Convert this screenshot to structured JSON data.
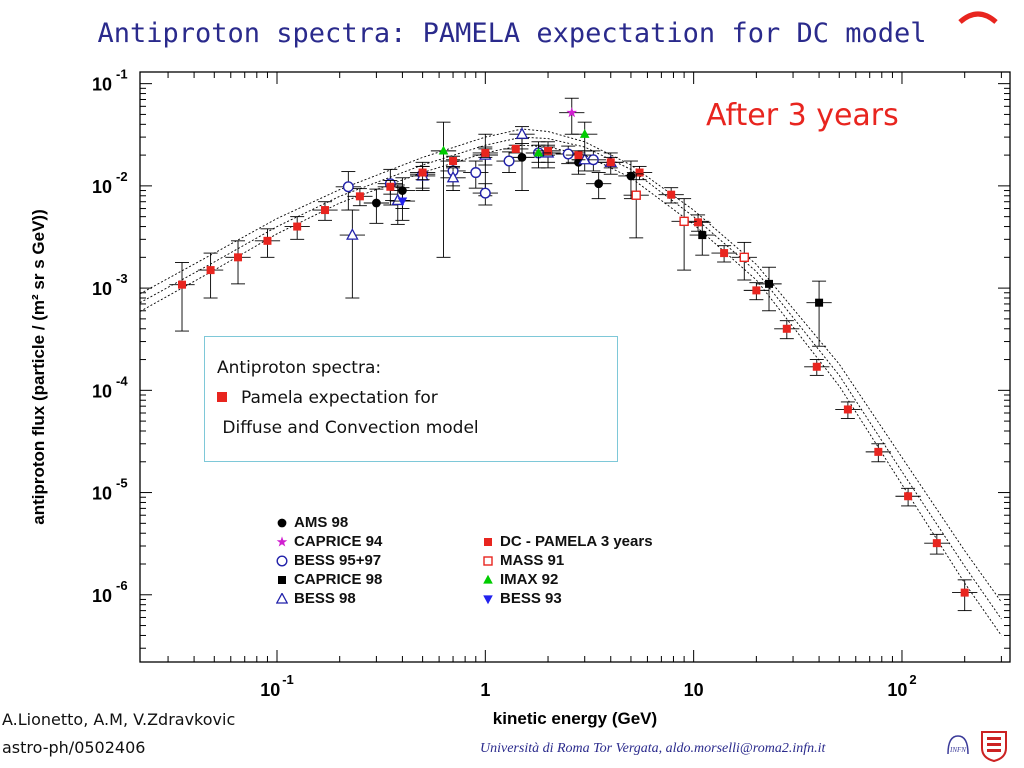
{
  "slide": {
    "title": "Antiproton spectra: PAMELA expectation for DC model",
    "overlay_label": "After 3 years",
    "credit_line1": "A.Lionetto, A.M, V.Zdravkovic",
    "credit_line2": "astro-ph/0502406",
    "affiliation": "Università di Roma Tor Vergata,    aldo.morselli@roma2.infn.it"
  },
  "info_box": {
    "line1": "Antiproton spectra:",
    "line2": "Pamela expectation for",
    "line3": "Diffuse and Convection  model"
  },
  "logos": {
    "infn": "INFN",
    "shield": "shield-icon"
  },
  "colors": {
    "accent_red": "#e8251f",
    "title_blue": "#2a2a8c",
    "box_border": "#7ec8d8"
  },
  "chart_data": {
    "type": "scatter",
    "xscale": "log",
    "yscale": "log",
    "xlabel": "kinetic energy (GeV)",
    "ylabel": "antiproton flux (particle / (m² sr s GeV))",
    "xlim": [
      0.022,
      330
    ],
    "ylim": [
      2.2e-07,
      0.13
    ],
    "x_ticks": [
      {
        "v": 0.1,
        "base": "10",
        "exp": "-1"
      },
      {
        "v": 1,
        "base": "1",
        "exp": ""
      },
      {
        "v": 10,
        "base": "10",
        "exp": ""
      },
      {
        "v": 100,
        "base": "10",
        "exp": "2"
      }
    ],
    "y_ticks": [
      {
        "v": 0.1,
        "base": "10",
        "exp": "-1"
      },
      {
        "v": 0.01,
        "base": "10",
        "exp": "-2"
      },
      {
        "v": 0.001,
        "base": "10",
        "exp": "-3"
      },
      {
        "v": 0.0001,
        "base": "10",
        "exp": "-4"
      },
      {
        "v": 1e-05,
        "base": "10",
        "exp": "-5"
      },
      {
        "v": 1e-06,
        "base": "10",
        "exp": "-6"
      }
    ],
    "series": [
      {
        "name": "AMS 98",
        "marker": "filled-circle",
        "color": "#000000",
        "points": [
          [
            0.3,
            0.0068,
            0.0025
          ],
          [
            0.4,
            0.009,
            0.003
          ],
          [
            1.0,
            0.02,
            0.012
          ],
          [
            1.5,
            0.019,
            0.01
          ],
          [
            2.0,
            0.021,
            0.006
          ],
          [
            2.8,
            0.017,
            0.004
          ],
          [
            3.5,
            0.0105,
            0.003
          ],
          [
            5.0,
            0.0125,
            0.005
          ]
        ]
      },
      {
        "name": "CAPRICE 94",
        "marker": "star",
        "color": "#d020d0",
        "points": [
          [
            2.6,
            0.052,
            0.02
          ]
        ]
      },
      {
        "name": "BESS 95+97",
        "marker": "open-circle",
        "color": "#2222aa",
        "points": [
          [
            0.22,
            0.0098,
            0.004
          ],
          [
            0.35,
            0.0105,
            0.004
          ],
          [
            0.5,
            0.013,
            0.004
          ],
          [
            0.7,
            0.014,
            0.004
          ],
          [
            0.9,
            0.0135,
            0.004
          ],
          [
            1.0,
            0.0085,
            0.002
          ],
          [
            1.3,
            0.0175,
            0.004
          ],
          [
            1.8,
            0.021,
            0.004
          ],
          [
            2.5,
            0.0205,
            0.004
          ],
          [
            3.3,
            0.018,
            0.004
          ]
        ]
      },
      {
        "name": "CAPRICE 98",
        "marker": "filled-square",
        "color": "#000000",
        "points": [
          [
            11,
            0.0033,
            0.0012
          ],
          [
            23,
            0.0011,
            0.0005
          ],
          [
            40,
            0.00072,
            0.00045
          ]
        ]
      },
      {
        "name": "BESS 98",
        "marker": "open-triangle-up",
        "color": "#2222aa",
        "points": [
          [
            0.23,
            0.0033,
            0.0025
          ],
          [
            0.38,
            0.0072,
            0.003
          ],
          [
            0.5,
            0.0125,
            0.003
          ],
          [
            0.7,
            0.012,
            0.003
          ],
          [
            1.0,
            0.02,
            0.004
          ],
          [
            1.5,
            0.032,
            0.006
          ],
          [
            2.0,
            0.021,
            0.004
          ],
          [
            3.0,
            0.018,
            0.004
          ],
          [
            4.0,
            0.017,
            0.004
          ]
        ]
      },
      {
        "name": "DC - PAMELA 3 years",
        "marker": "filled-square",
        "color": "#e8251f",
        "points": [
          [
            0.035,
            0.00108,
            0.0007
          ],
          [
            0.048,
            0.0015,
            0.0007
          ],
          [
            0.065,
            0.002,
            0.0009
          ],
          [
            0.09,
            0.0029,
            0.0009
          ],
          [
            0.125,
            0.004,
            0.001
          ],
          [
            0.17,
            0.0058,
            0.0012
          ],
          [
            0.25,
            0.0079,
            0.0015
          ],
          [
            0.35,
            0.0098,
            0.0015
          ],
          [
            0.5,
            0.0135,
            0.002
          ],
          [
            0.7,
            0.0175,
            0.002
          ],
          [
            1.0,
            0.021,
            0.002
          ],
          [
            1.4,
            0.023,
            0.002
          ],
          [
            2.0,
            0.022,
            0.002
          ],
          [
            2.8,
            0.02,
            0.002
          ],
          [
            4.0,
            0.017,
            0.002
          ],
          [
            5.5,
            0.0135,
            0.002
          ],
          [
            7.8,
            0.0082,
            0.0014
          ],
          [
            10.5,
            0.0044,
            0.0008
          ],
          [
            14,
            0.0022,
            0.0004
          ],
          [
            20,
            0.00095,
            0.00018
          ],
          [
            28,
            0.0004,
            8e-05
          ],
          [
            39,
            0.00017,
            3e-05
          ],
          [
            55,
            6.5e-05,
            1.2e-05
          ],
          [
            77,
            2.5e-05,
            5e-06
          ],
          [
            107,
            9.2e-06,
            1.8e-06
          ],
          [
            147,
            3.2e-06,
            7e-07
          ],
          [
            200,
            1.05e-06,
            3.5e-07
          ]
        ]
      },
      {
        "name": "MASS 91",
        "marker": "open-square",
        "color": "#e8251f",
        "points": [
          [
            5.3,
            0.0081,
            0.005
          ],
          [
            9.0,
            0.0045,
            0.003
          ],
          [
            17.5,
            0.002,
            0.0008
          ]
        ]
      },
      {
        "name": "IMAX 92",
        "marker": "filled-triangle-up",
        "color": "#00cc00",
        "points": [
          [
            0.63,
            0.022,
            0.02
          ],
          [
            1.8,
            0.021,
            0.006
          ],
          [
            3.0,
            0.032,
            0.01
          ]
        ]
      },
      {
        "name": "BESS 93",
        "marker": "filled-triangle-down",
        "color": "#2222ee",
        "points": [
          [
            0.4,
            0.0071,
            0.0025
          ]
        ]
      }
    ],
    "model_bands": [
      {
        "points": [
          [
            0.022,
            0.00088
          ],
          [
            0.05,
            0.0022
          ],
          [
            0.1,
            0.0048
          ],
          [
            0.2,
            0.0092
          ],
          [
            0.5,
            0.019
          ],
          [
            1.0,
            0.03
          ],
          [
            1.5,
            0.036
          ],
          [
            2.0,
            0.034
          ],
          [
            3.0,
            0.027
          ],
          [
            5.0,
            0.016
          ],
          [
            10,
            0.0058
          ],
          [
            20,
            0.0017
          ],
          [
            50,
            0.00018
          ],
          [
            100,
            2.2e-05
          ],
          [
            200,
            2.7e-06
          ],
          [
            300,
            8.5e-07
          ]
        ]
      },
      {
        "points": [
          [
            0.022,
            0.00072
          ],
          [
            0.05,
            0.0018
          ],
          [
            0.1,
            0.004
          ],
          [
            0.2,
            0.0079
          ],
          [
            0.5,
            0.016
          ],
          [
            1.0,
            0.025
          ],
          [
            1.5,
            0.03
          ],
          [
            2.0,
            0.029
          ],
          [
            3.0,
            0.024
          ],
          [
            5.0,
            0.0145
          ],
          [
            10,
            0.005
          ],
          [
            20,
            0.00145
          ],
          [
            50,
            0.00014
          ],
          [
            100,
            1.6e-05
          ],
          [
            200,
            1.9e-06
          ],
          [
            300,
            5.8e-07
          ]
        ]
      },
      {
        "points": [
          [
            0.022,
            0.00059
          ],
          [
            0.05,
            0.0015
          ],
          [
            0.1,
            0.0034
          ],
          [
            0.2,
            0.0068
          ],
          [
            0.5,
            0.0135
          ],
          [
            1.0,
            0.021
          ],
          [
            1.5,
            0.025
          ],
          [
            2.0,
            0.024
          ],
          [
            3.0,
            0.02
          ],
          [
            5.0,
            0.012
          ],
          [
            10,
            0.0042
          ],
          [
            20,
            0.0012
          ],
          [
            50,
            0.00011
          ],
          [
            100,
            1.2e-05
          ],
          [
            200,
            1.3e-06
          ],
          [
            300,
            4e-07
          ]
        ]
      }
    ],
    "legend_position": "bottom-center"
  }
}
